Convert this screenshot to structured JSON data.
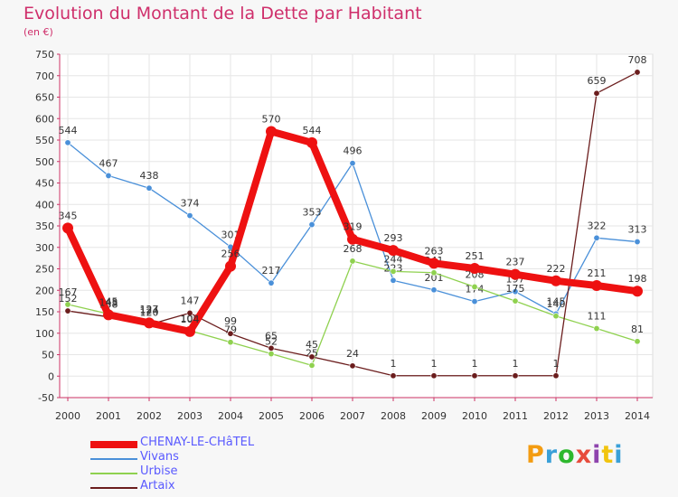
{
  "header": {
    "title": "Evolution du Montant de la Dette par Habitant",
    "subtitle": "(en €)"
  },
  "logo": {
    "text": "Proxiti",
    "colors": [
      "#f39c12",
      "#3aa0d8",
      "#2eb82e",
      "#e74c3c",
      "#8e44ad",
      "#f1c40f",
      "#3aa0d8"
    ]
  },
  "chart_data": {
    "type": "line",
    "title": "Evolution du Montant de la Dette par Habitant",
    "subtitle": "(en €)",
    "x": [
      "2000",
      "2001",
      "2002",
      "2003",
      "2004",
      "2005",
      "2006",
      "2007",
      "2008",
      "2009",
      "2010",
      "2011",
      "2012",
      "2013",
      "2014"
    ],
    "ylim": [
      -50,
      750
    ],
    "yticks": [
      -50,
      0,
      50,
      100,
      150,
      200,
      250,
      300,
      350,
      400,
      450,
      500,
      550,
      600,
      650,
      700,
      750
    ],
    "grid": true,
    "legend_position": "bottom-left",
    "series": [
      {
        "name": "Vivans",
        "color": "#4a90d9",
        "values": [
          544,
          467,
          438,
          374,
          301,
          217,
          353,
          496,
          223,
          201,
          174,
          197,
          145,
          322,
          313
        ],
        "labels": [
          "544",
          "467",
          "438",
          "374",
          "301",
          "217",
          "353",
          "496",
          "223",
          "201",
          "174",
          "197",
          "145",
          "322",
          "313"
        ]
      },
      {
        "name": "Urbise",
        "color": "#8fd14f",
        "values": [
          167,
          145,
          127,
          106,
          79,
          52,
          25,
          268,
          244,
          241,
          208,
          175,
          140,
          111,
          81
        ],
        "labels": [
          "167",
          "145",
          "127",
          "106",
          "79",
          "52",
          "25",
          "268",
          "244",
          "241",
          "208",
          "175",
          "140",
          "111",
          "81"
        ]
      },
      {
        "name": "Artaix",
        "color": "#6b1d1d",
        "values": [
          152,
          138,
          120,
          147,
          99,
          65,
          45,
          24,
          1,
          1,
          1,
          1,
          1,
          659,
          708
        ],
        "labels": [
          "152",
          "138",
          "120",
          "147",
          "99",
          "65",
          "45",
          "24",
          "1",
          "1",
          "1",
          "1",
          "1",
          "659",
          "708"
        ]
      },
      {
        "name": "CHENAY-LE-CHâTEL",
        "color": "#ee1111",
        "values": [
          345,
          143,
          124,
          104,
          256,
          570,
          544,
          319,
          293,
          263,
          251,
          237,
          222,
          211,
          198
        ],
        "labels": [
          "345",
          "143",
          "124",
          "104",
          "256",
          "570",
          "544",
          "319",
          "293",
          "263",
          "251",
          "237",
          "222",
          "211",
          "198"
        ]
      }
    ]
  }
}
